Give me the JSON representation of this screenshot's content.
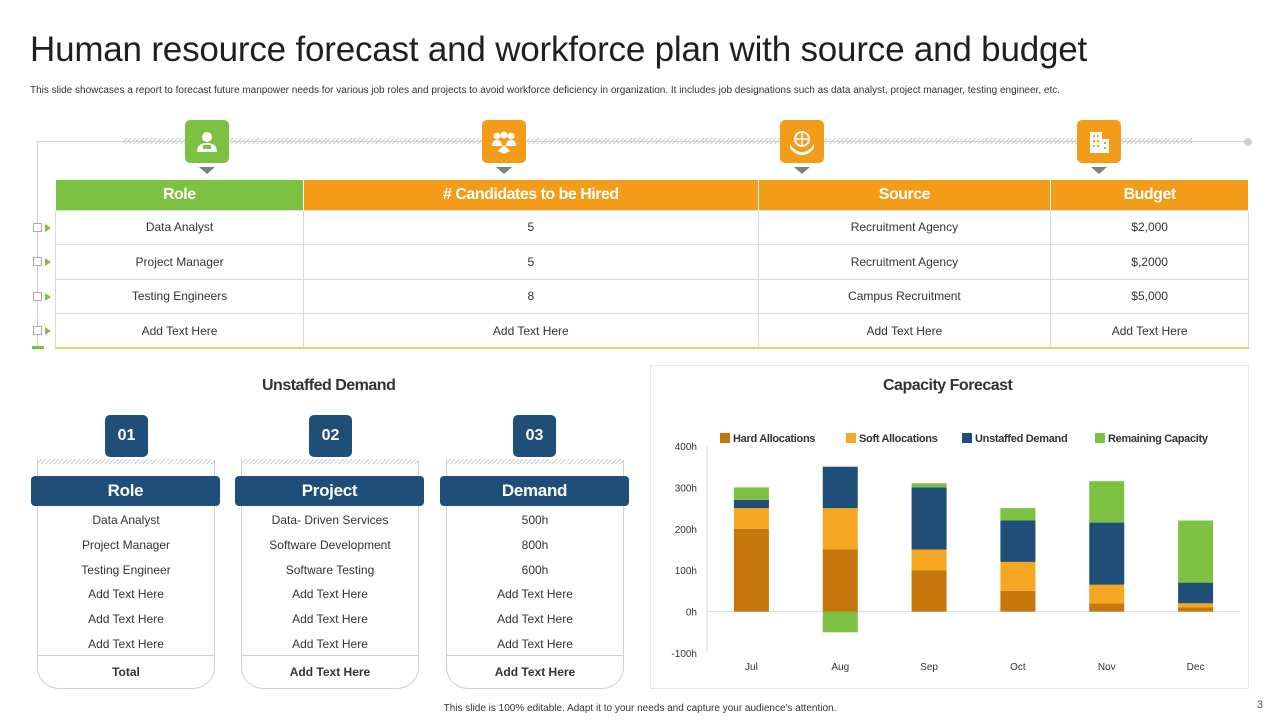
{
  "title": "Human resource forecast and workforce plan with source and budget",
  "subtitle": "This slide showcases a report to forecast future manpower needs for various job roles and projects to avoid workforce deficiency in organization. It includes job designations such as data analyst, project manager, testing engineer, etc.",
  "icons": [
    "user-icon",
    "team-icon",
    "globe-hands-icon",
    "building-icon"
  ],
  "table": {
    "headers": [
      "Role",
      "# Candidates to be Hired",
      "Source",
      "Budget"
    ],
    "rows": [
      [
        "Data Analyst",
        "5",
        "Recruitment Agency",
        "$2,000"
      ],
      [
        "Project Manager",
        "5",
        "Recruitment Agency",
        "$,2000"
      ],
      [
        "Testing Engineers",
        "8",
        "Campus Recruitment",
        "$5,000"
      ],
      [
        "Add Text Here",
        "Add Text Here",
        "Add Text Here",
        "Add Text Here"
      ]
    ]
  },
  "unstaffed": {
    "title": "Unstaffed Demand",
    "cards": [
      {
        "num": "01",
        "header": "Role",
        "items": [
          "Data Analyst",
          "Project Manager",
          "Testing Engineer",
          "Add Text Here",
          "Add Text Here",
          "Add Text Here"
        ],
        "total": "Total"
      },
      {
        "num": "02",
        "header": "Project",
        "items": [
          "Data- Driven Services",
          "Software Development",
          "Software Testing",
          "Add Text Here",
          "Add Text Here",
          "Add Text Here"
        ],
        "total": "Add  Text Here"
      },
      {
        "num": "03",
        "header": "Demand",
        "items": [
          "500h",
          "800h",
          "600h",
          "Add Text Here",
          "Add Text Here",
          "Add Text Here"
        ],
        "total": "Add  Text Here"
      }
    ]
  },
  "chart_data": {
    "type": "bar",
    "stacked": true,
    "title": "Capacity Forecast",
    "categories": [
      "Jul",
      "Aug",
      "Sep",
      "Oct",
      "Nov",
      "Dec"
    ],
    "ylim": [
      -100,
      400
    ],
    "yticks": [
      "400h",
      "300h",
      "200h",
      "100h",
      "0h",
      "-100h"
    ],
    "ytick_values": [
      400,
      300,
      200,
      100,
      0,
      -100
    ],
    "series": [
      {
        "name": "Hard Allocations",
        "color": "#c5770b",
        "values": [
          200,
          150,
          100,
          50,
          20,
          10
        ]
      },
      {
        "name": "Soft Allocations",
        "color": "#f5a623",
        "values": [
          50,
          100,
          50,
          70,
          45,
          10
        ]
      },
      {
        "name": "Unstaffed Demand",
        "color": "#1f4e79",
        "values": [
          20,
          100,
          150,
          100,
          150,
          50
        ]
      },
      {
        "name": "Remaining Capacity",
        "color": "#7dc142",
        "values": [
          30,
          -50,
          10,
          30,
          100,
          150
        ]
      }
    ],
    "legend_position": "top"
  },
  "footer": "This slide is 100% editable.  Adapt it to your needs and capture your audience's attention.",
  "page_number": "3"
}
